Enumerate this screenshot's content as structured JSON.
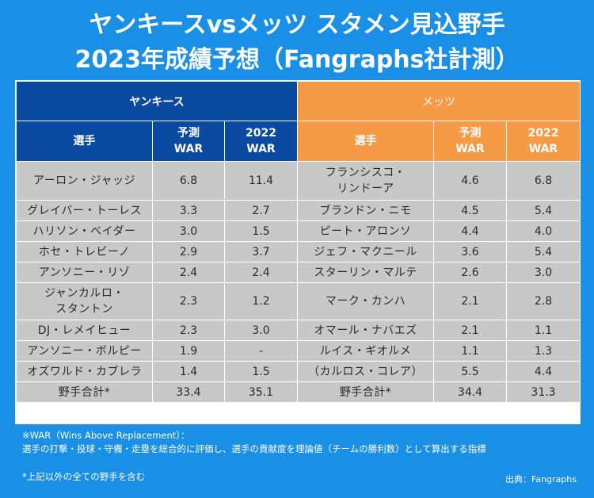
{
  "title": {
    "line1": "ヤンキースvsメッツ スタメン見込野手",
    "line2": "2023年成績予想（Fangraphs社計測）"
  },
  "teams": {
    "left": "ヤンキース",
    "right": "メッツ"
  },
  "headers": {
    "player": "選手",
    "pred_line1": "予測",
    "pred_line2": "WAR",
    "prev_line1": "2022",
    "prev_line2": "WAR"
  },
  "rows": [
    {
      "y_name": "アーロン・ジャッジ",
      "y_pred": "6.8",
      "y_prev": "11.4",
      "m_name": "フランシスコ・\nリンドーア",
      "m_pred": "4.6",
      "m_prev": "6.8"
    },
    {
      "y_name": "グレイバー・トーレス",
      "y_pred": "3.3",
      "y_prev": "2.7",
      "m_name": "ブランドン・ニモ",
      "m_pred": "4.5",
      "m_prev": "5.4"
    },
    {
      "y_name": "ハリソン・ベイダー",
      "y_pred": "3.0",
      "y_prev": "1.5",
      "m_name": "ピート・アロンソ",
      "m_pred": "4.4",
      "m_prev": "4.0"
    },
    {
      "y_name": "ホセ・トレビーノ",
      "y_pred": "2.9",
      "y_prev": "3.7",
      "m_name": "ジェフ・マクニール",
      "m_pred": "3.6",
      "m_prev": "5.4"
    },
    {
      "y_name": "アンソニー・リゾ",
      "y_pred": "2.4",
      "y_prev": "2.4",
      "m_name": "スターリン・マルテ",
      "m_pred": "2.6",
      "m_prev": "3.0"
    },
    {
      "y_name": "ジャンカルロ・\nスタントン",
      "y_pred": "2.3",
      "y_prev": "1.2",
      "m_name": "マーク・カンハ",
      "m_pred": "2.1",
      "m_prev": "2.8"
    },
    {
      "y_name": "DJ・レメイヒュー",
      "y_pred": "2.3",
      "y_prev": "3.0",
      "m_name": "オマール・ナバエズ",
      "m_pred": "2.1",
      "m_prev": "1.1"
    },
    {
      "y_name": "アンソニー・ボルピー",
      "y_pred": "1.9",
      "y_prev": "-",
      "m_name": "ルイス・ギオルメ",
      "m_pred": "1.1",
      "m_prev": "1.3"
    },
    {
      "y_name": "オズワルド・カブレラ",
      "y_pred": "1.4",
      "y_prev": "1.5",
      "m_name": "（カルロス・コレア）",
      "m_pred": "5.5",
      "m_prev": "4.4"
    }
  ],
  "totals": {
    "label": "野手合計*",
    "y_pred": "33.4",
    "y_prev": "35.1",
    "m_pred": "34.4",
    "m_prev": "31.3"
  },
  "notes": {
    "war_title": "※WAR（Wins Above Replacement）：",
    "war_desc": "選手の打撃・投球・守備・走塁を総合的に評価し、選手の貢献度を理論値（チームの勝利数）として算出する指標",
    "footnote": "*上記以外の全ての野手を含む",
    "source": "出典：Fangraphs"
  },
  "colors": {
    "background": "#1a8fe6",
    "yankees": "#0b4aa1",
    "mets": "#f59a45",
    "cell": "#c8c8c8"
  }
}
